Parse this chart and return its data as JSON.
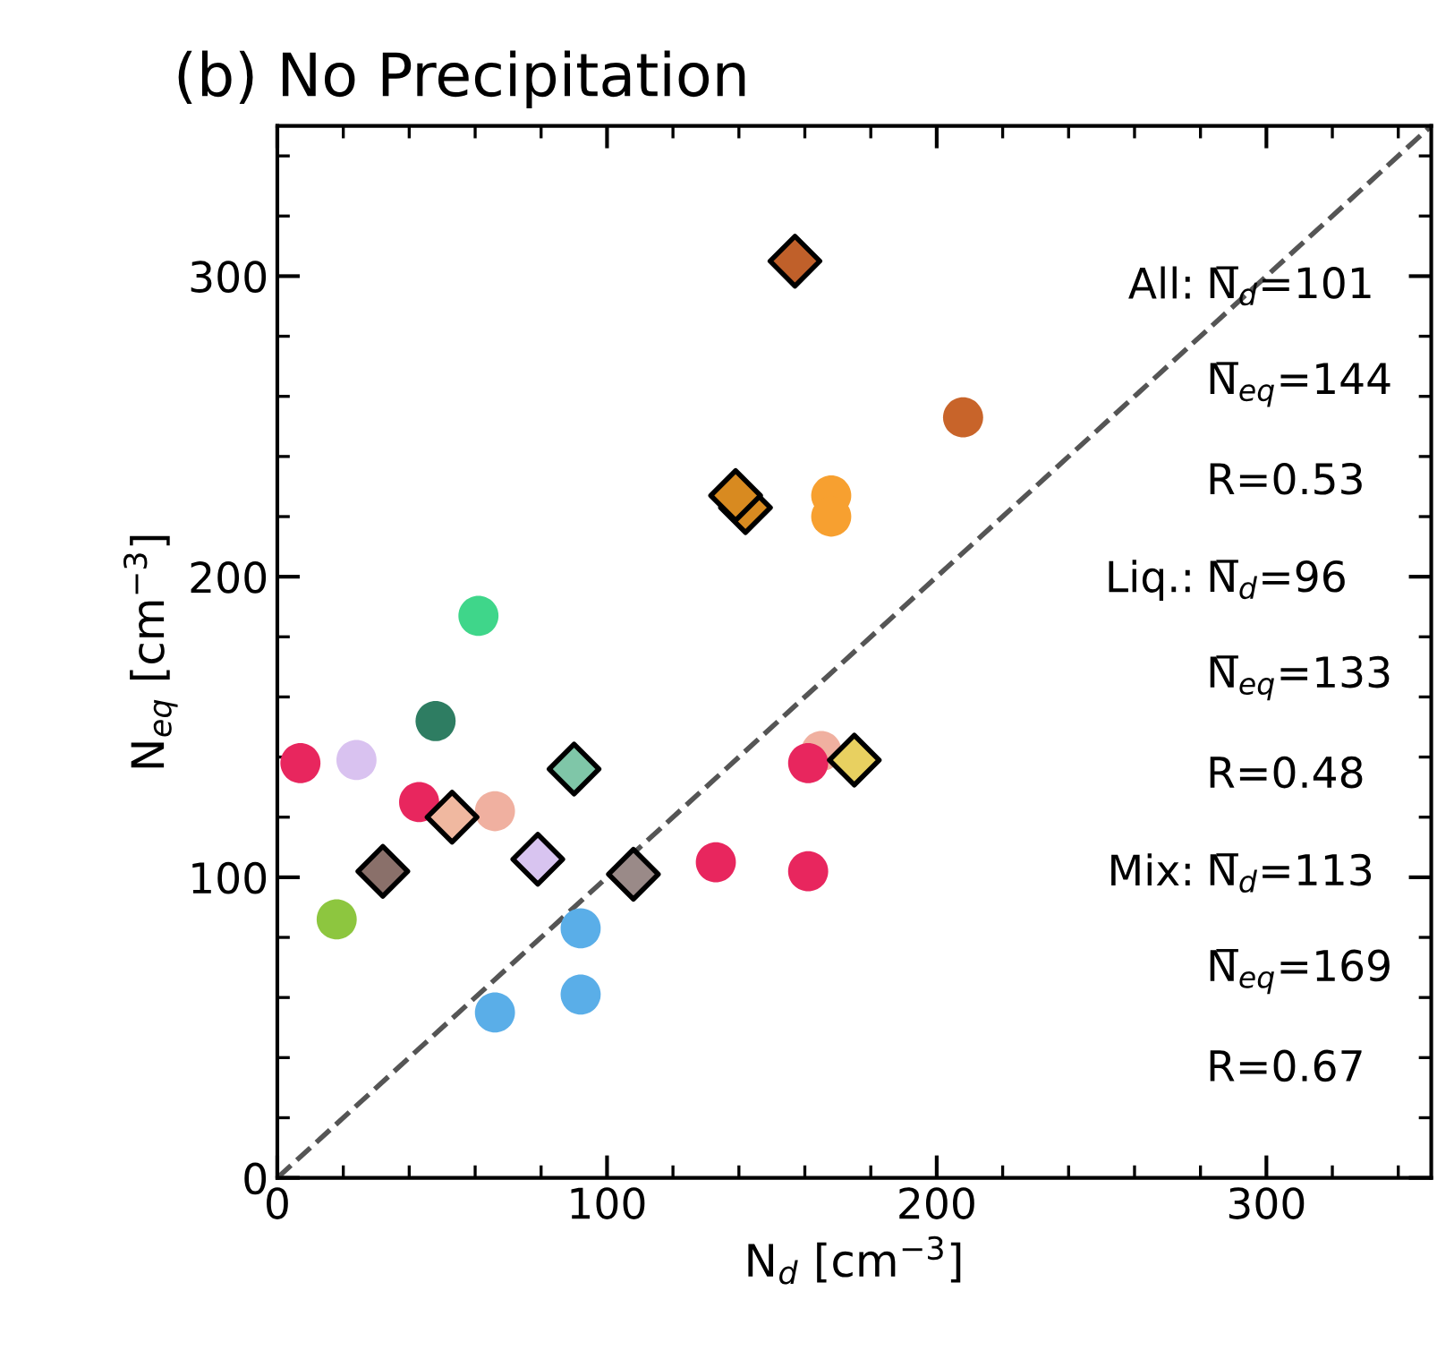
{
  "chart_data": {
    "type": "scatter",
    "title": "(b) No Precipitation",
    "xlabel": "N$_{d}$ [cm$^{−3}$]",
    "ylabel": "N$_{eq}$ [cm$^{−3}$]",
    "xlim": [
      0,
      350
    ],
    "ylim": [
      0,
      350
    ],
    "xticks": [
      0,
      100,
      200,
      300
    ],
    "yticks": [
      0,
      100,
      200,
      300
    ],
    "grid": false,
    "series": [
      {
        "marker": "circle",
        "x": [
          7,
          24,
          48,
          61,
          43,
          66,
          18,
          66,
          92,
          92,
          133,
          161,
          165,
          161,
          168,
          168,
          208
        ],
        "values": [
          138,
          139,
          152,
          187,
          125,
          122,
          86,
          55,
          61,
          83,
          105,
          102,
          142,
          138,
          227,
          220,
          253
        ],
        "colors": [
          "#e8265e",
          "#d9c2f0",
          "#2e7d62",
          "#3fd68a",
          "#e8265e",
          "#f0b0a0",
          "#8dc63f",
          "#5aaee8",
          "#5aaee8",
          "#5aaee8",
          "#e8265e",
          "#e8265e",
          "#f0b0a0",
          "#e8265e",
          "#f7a030",
          "#f7a030",
          "#c8642a"
        ]
      },
      {
        "marker": "diamond",
        "x": [
          157,
          142,
          139,
          90,
          53,
          32,
          79,
          108,
          175
        ],
        "values": [
          305,
          223,
          227,
          136,
          120,
          102,
          106,
          101,
          139
        ],
        "colors": [
          "#c0602a",
          "#d88a20",
          "#d88a20",
          "#7fc6a8",
          "#f0b8a0",
          "#8a706a",
          "#d8c4f0",
          "#9a8a88",
          "#e8d060"
        ]
      },
      {
        "type": "line",
        "line_style": "dashed",
        "color": "#555555",
        "x": [
          0,
          350
        ],
        "values": [
          0,
          350
        ]
      }
    ],
    "annotations": [
      "All:",
      "N̅$_{d}$=101",
      "N̅$_{eq}$=144",
      "R=0.53",
      "Liq.:",
      "N̅$_{d}$=96",
      "N̅$_{eq}$=133",
      "R=0.48",
      "Mix:",
      "N̅$_{d}$=113",
      "N̅$_{eq}$=169",
      "R=0.67"
    ]
  }
}
